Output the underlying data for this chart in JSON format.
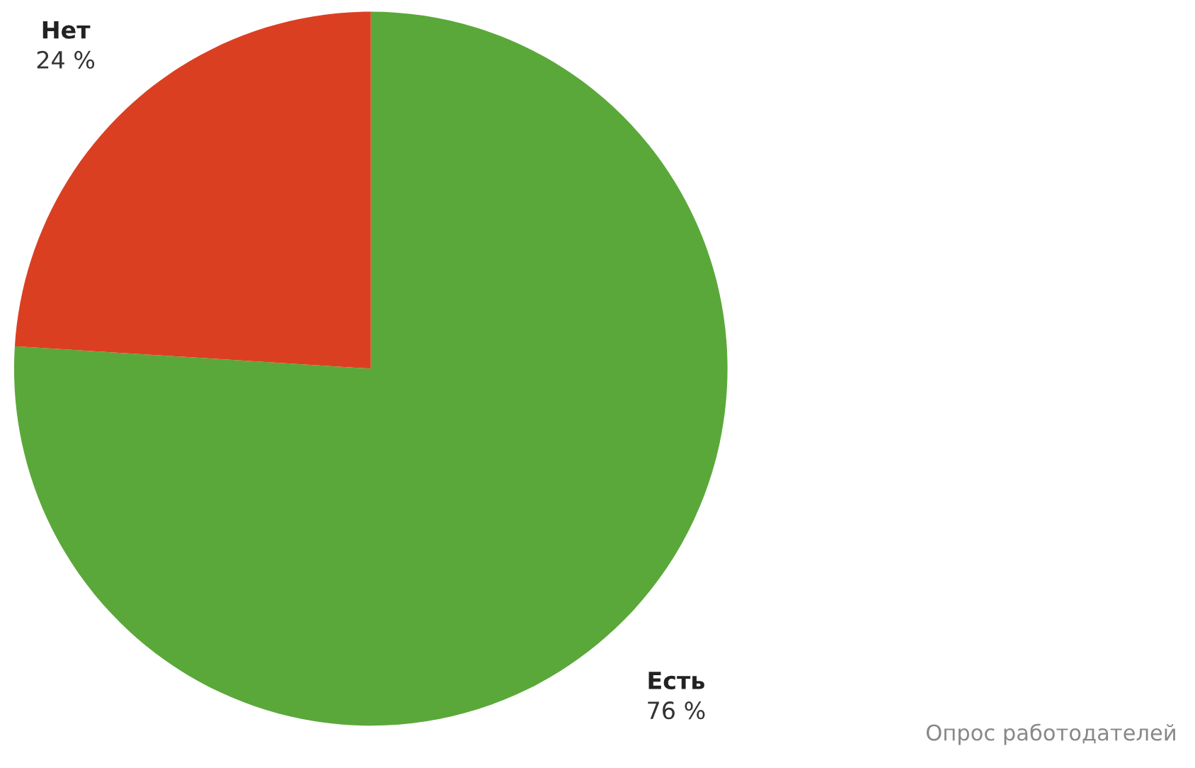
{
  "chart_data": {
    "type": "pie",
    "categories": [
      "Есть",
      "Нет"
    ],
    "values": [
      76,
      24
    ],
    "colors": [
      "#5aa83a",
      "#db3f22"
    ],
    "value_labels": [
      "76 %",
      "24 %"
    ],
    "annotations": [
      "Опрос работодателей"
    ],
    "legend": false
  }
}
